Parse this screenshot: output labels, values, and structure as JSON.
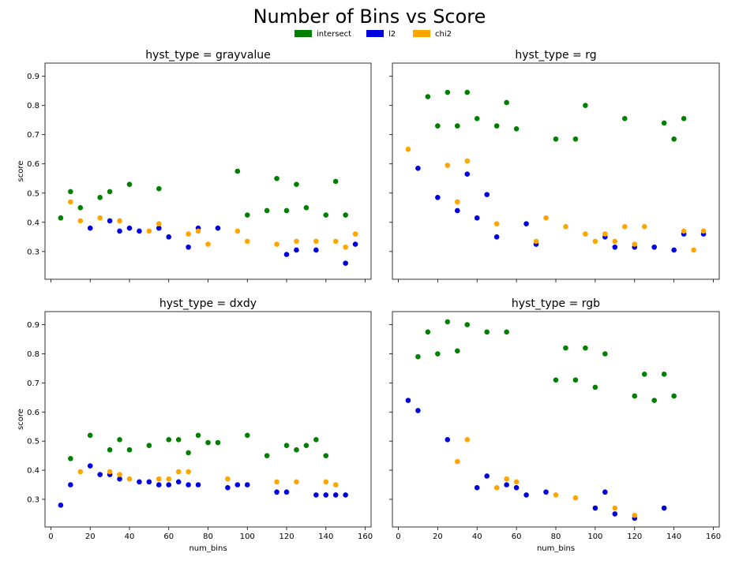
{
  "suptitle": "Number of Bins vs Score",
  "legend": [
    {
      "label": "intersect",
      "color": "#008000"
    },
    {
      "label": "l2",
      "color": "#0000dd"
    },
    {
      "label": "chi2",
      "color": "#ffa500"
    }
  ],
  "shared_axes": {
    "xlabel": "num_bins",
    "ylabel": "score",
    "xlim": [
      -3,
      163
    ],
    "ylim": [
      0.205,
      0.945
    ],
    "xticks": [
      0,
      20,
      40,
      60,
      80,
      100,
      120,
      140,
      160
    ],
    "yticks": [
      0.3,
      0.4,
      0.5,
      0.6,
      0.7,
      0.8,
      0.9
    ],
    "ytick_labels": [
      "0.3",
      "0.4",
      "0.5",
      "0.6",
      "0.7",
      "0.8",
      "0.9"
    ]
  },
  "chart_data": [
    {
      "type": "scatter",
      "title": "hyst_type = grayvalue",
      "series": [
        {
          "name": "intersect",
          "x": [
            5,
            10,
            15,
            25,
            30,
            40,
            55,
            95,
            100,
            110,
            115,
            120,
            125,
            130,
            140,
            145,
            150
          ],
          "y": [
            0.415,
            0.505,
            0.45,
            0.485,
            0.505,
            0.53,
            0.515,
            0.575,
            0.425,
            0.44,
            0.55,
            0.44,
            0.53,
            0.45,
            0.425,
            0.54,
            0.425
          ]
        },
        {
          "name": "l2",
          "x": [
            20,
            30,
            35,
            40,
            45,
            55,
            60,
            70,
            75,
            85,
            120,
            125,
            135,
            150,
            155
          ],
          "y": [
            0.38,
            0.405,
            0.37,
            0.38,
            0.37,
            0.38,
            0.35,
            0.315,
            0.38,
            0.38,
            0.29,
            0.305,
            0.305,
            0.26,
            0.325
          ]
        },
        {
          "name": "chi2",
          "x": [
            10,
            15,
            25,
            35,
            50,
            55,
            70,
            75,
            80,
            95,
            100,
            115,
            125,
            135,
            145,
            150,
            155
          ],
          "y": [
            0.47,
            0.405,
            0.415,
            0.405,
            0.37,
            0.395,
            0.36,
            0.37,
            0.325,
            0.37,
            0.335,
            0.325,
            0.335,
            0.335,
            0.335,
            0.315,
            0.36
          ]
        }
      ]
    },
    {
      "type": "scatter",
      "title": "hyst_type = rg",
      "series": [
        {
          "name": "intersect",
          "x": [
            15,
            20,
            25,
            30,
            35,
            40,
            50,
            55,
            60,
            80,
            90,
            95,
            115,
            135,
            140,
            145
          ],
          "y": [
            0.83,
            0.73,
            0.845,
            0.73,
            0.845,
            0.755,
            0.73,
            0.81,
            0.72,
            0.685,
            0.685,
            0.8,
            0.755,
            0.74,
            0.685,
            0.755
          ]
        },
        {
          "name": "l2",
          "x": [
            10,
            20,
            30,
            35,
            40,
            45,
            50,
            65,
            70,
            105,
            110,
            120,
            130,
            140,
            145,
            155
          ],
          "y": [
            0.585,
            0.485,
            0.44,
            0.565,
            0.415,
            0.495,
            0.35,
            0.395,
            0.325,
            0.35,
            0.315,
            0.315,
            0.315,
            0.305,
            0.36,
            0.36
          ]
        },
        {
          "name": "chi2",
          "x": [
            5,
            25,
            30,
            35,
            50,
            70,
            75,
            85,
            95,
            100,
            105,
            110,
            115,
            120,
            125,
            145,
            150,
            155
          ],
          "y": [
            0.65,
            0.595,
            0.47,
            0.61,
            0.395,
            0.335,
            0.415,
            0.385,
            0.36,
            0.335,
            0.36,
            0.335,
            0.385,
            0.325,
            0.385,
            0.37,
            0.305,
            0.37
          ]
        }
      ]
    },
    {
      "type": "scatter",
      "title": "hyst_type = dxdy",
      "series": [
        {
          "name": "intersect",
          "x": [
            10,
            20,
            30,
            35,
            40,
            50,
            60,
            65,
            70,
            75,
            80,
            85,
            100,
            110,
            120,
            125,
            130,
            135,
            140
          ],
          "y": [
            0.44,
            0.52,
            0.47,
            0.505,
            0.47,
            0.485,
            0.505,
            0.505,
            0.46,
            0.52,
            0.495,
            0.495,
            0.52,
            0.45,
            0.485,
            0.47,
            0.485,
            0.505,
            0.45
          ]
        },
        {
          "name": "l2",
          "x": [
            5,
            10,
            20,
            25,
            30,
            35,
            45,
            50,
            55,
            60,
            65,
            70,
            75,
            90,
            95,
            100,
            115,
            120,
            135,
            140,
            145,
            150
          ],
          "y": [
            0.28,
            0.35,
            0.415,
            0.385,
            0.385,
            0.37,
            0.36,
            0.36,
            0.35,
            0.35,
            0.36,
            0.35,
            0.35,
            0.34,
            0.35,
            0.35,
            0.325,
            0.325,
            0.315,
            0.315,
            0.315,
            0.315
          ]
        },
        {
          "name": "chi2",
          "x": [
            15,
            30,
            35,
            40,
            55,
            60,
            65,
            70,
            90,
            115,
            125,
            140,
            145
          ],
          "y": [
            0.395,
            0.395,
            0.385,
            0.37,
            0.37,
            0.37,
            0.395,
            0.395,
            0.37,
            0.36,
            0.36,
            0.36,
            0.35
          ]
        }
      ]
    },
    {
      "type": "scatter",
      "title": "hyst_type = rgb",
      "series": [
        {
          "name": "intersect",
          "x": [
            10,
            15,
            20,
            25,
            30,
            35,
            45,
            55,
            80,
            85,
            90,
            95,
            100,
            105,
            120,
            125,
            130,
            135,
            140
          ],
          "y": [
            0.79,
            0.875,
            0.8,
            0.91,
            0.81,
            0.9,
            0.875,
            0.875,
            0.71,
            0.82,
            0.71,
            0.82,
            0.685,
            0.8,
            0.655,
            0.73,
            0.64,
            0.73,
            0.655
          ]
        },
        {
          "name": "l2",
          "x": [
            5,
            10,
            25,
            40,
            45,
            55,
            60,
            65,
            75,
            100,
            105,
            110,
            120,
            135
          ],
          "y": [
            0.64,
            0.605,
            0.505,
            0.34,
            0.38,
            0.35,
            0.34,
            0.315,
            0.325,
            0.27,
            0.325,
            0.25,
            0.235,
            0.27
          ]
        },
        {
          "name": "chi2",
          "x": [
            30,
            35,
            50,
            55,
            60,
            80,
            90,
            110,
            120
          ],
          "y": [
            0.43,
            0.505,
            0.34,
            0.37,
            0.36,
            0.315,
            0.305,
            0.27,
            0.245
          ]
        }
      ]
    }
  ]
}
